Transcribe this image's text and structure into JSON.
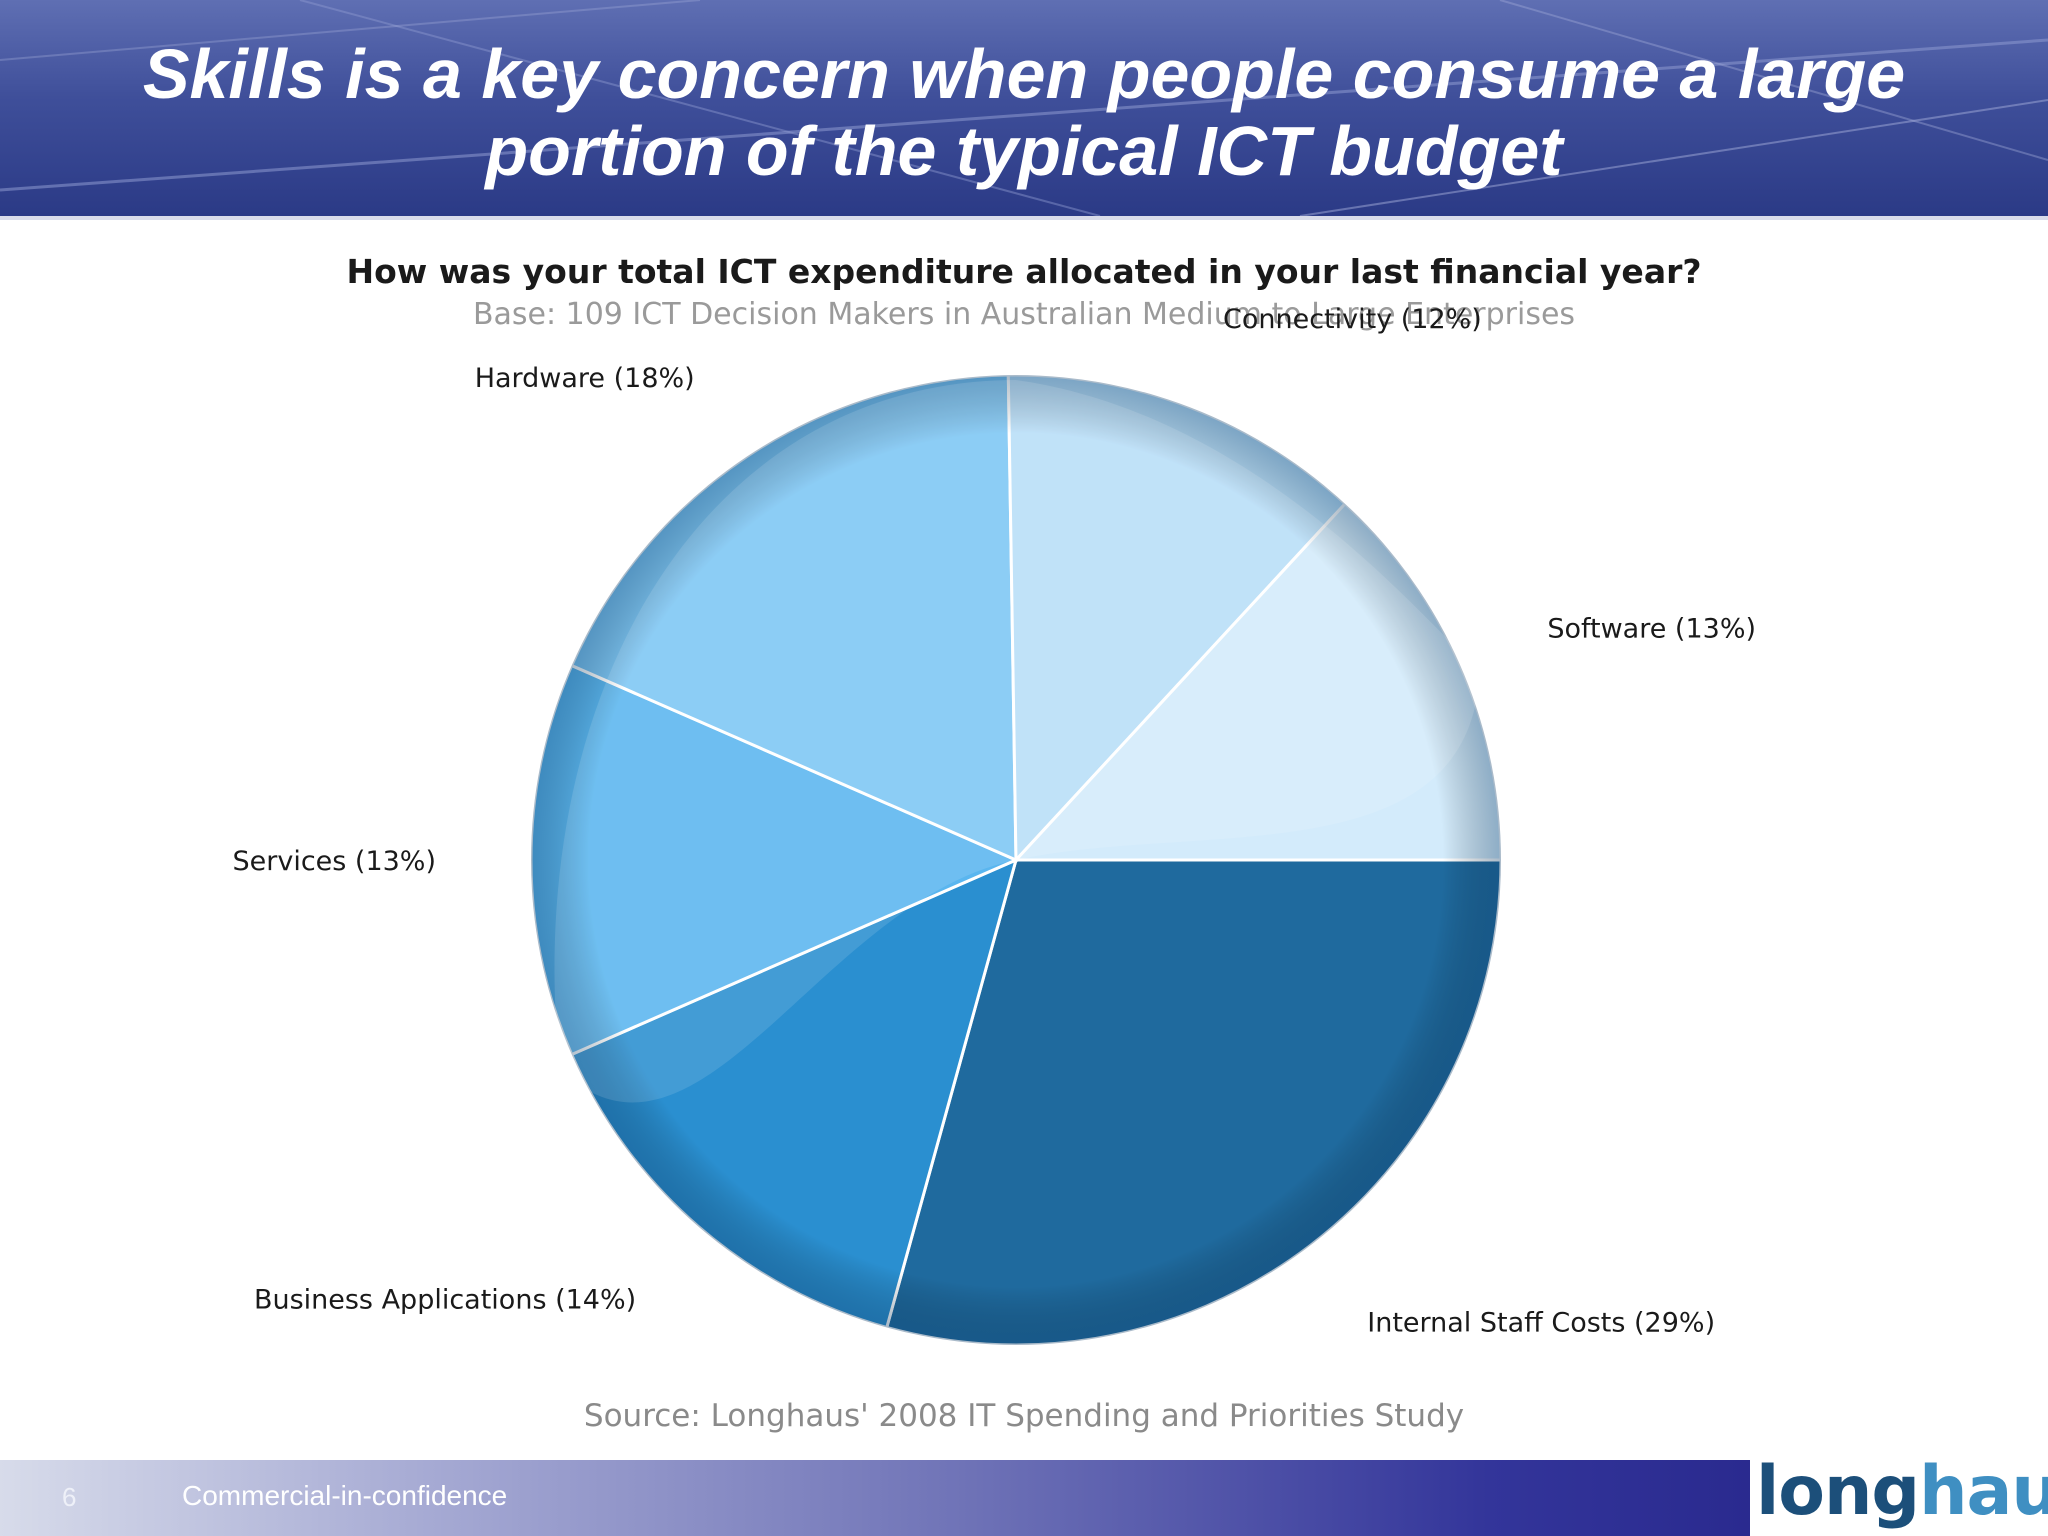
{
  "slide": {
    "title_line1": "Skills is a key concern when people consume a large",
    "title_line2": "portion of the typical ICT budget",
    "page_number": "6",
    "confidential": "Commercial-in-confidence",
    "logo": {
      "part1": "long",
      "part2": "haus"
    },
    "source": "Source: Longhaus' 2008 IT Spending and Priorities Study"
  },
  "chart_data": {
    "type": "pie",
    "title": "How was your total ICT expenditure allocated in your last financial year?",
    "subtitle": "Base: 109 ICT Decision Makers in Australian Medium to Large Enterprises",
    "slices": [
      {
        "label": "Internal Staff Costs (29%)",
        "value": 29,
        "color": "#1f6a9e"
      },
      {
        "label": "Business Applications (14%)",
        "value": 14,
        "color": "#2a8fd0"
      },
      {
        "label": "Services (13%)",
        "value": 13,
        "color": "#5ab6ef"
      },
      {
        "label": "Hardware (18%)",
        "value": 18,
        "color": "#7dc6f4"
      },
      {
        "label": "Connectivity (12%)",
        "value": 12,
        "color": "#b8def8"
      },
      {
        "label": "Software (13%)",
        "value": 13,
        "color": "#d3ebfb"
      }
    ]
  }
}
